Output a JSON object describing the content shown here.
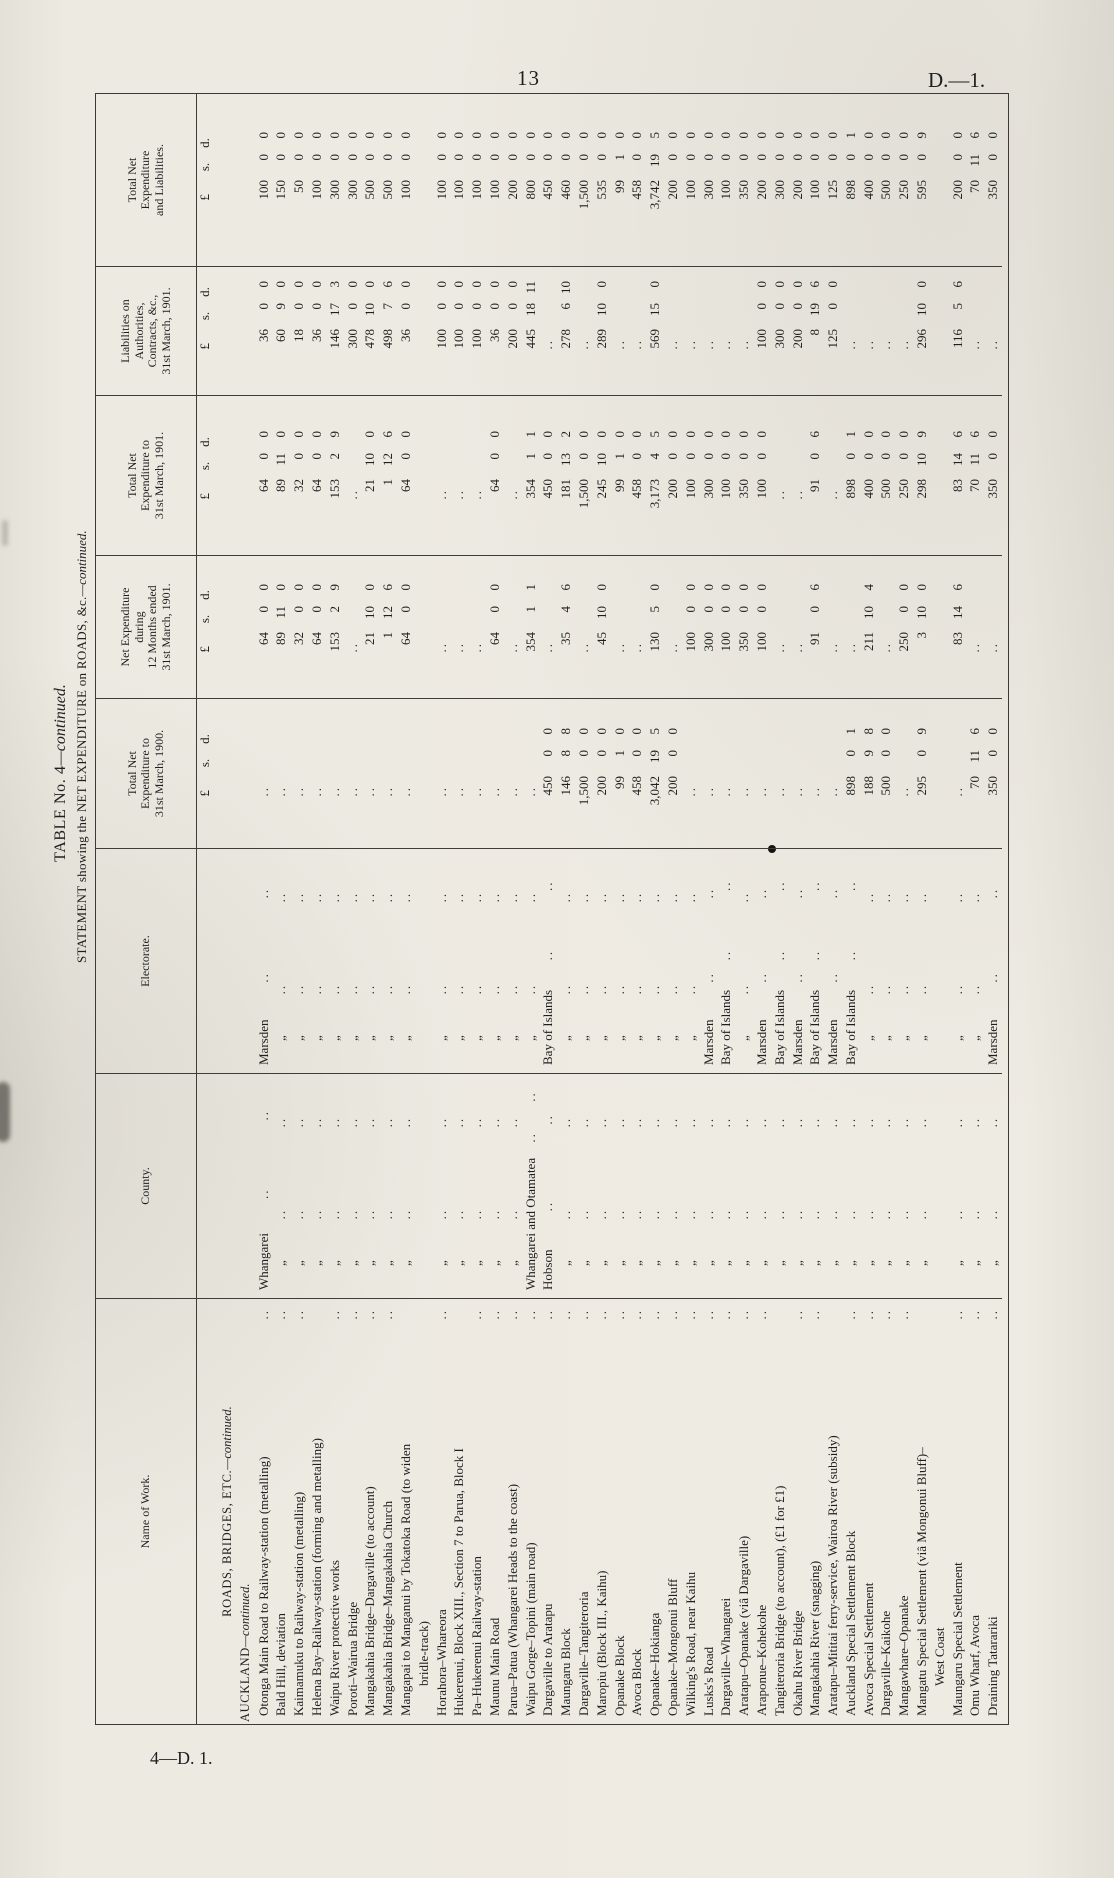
{
  "page": {
    "number": "13",
    "doc_ref": "D.—1.",
    "footer_ref": "4—D. 1."
  },
  "title": {
    "line1_main": "TABLE No. 4",
    "line1_cont": "—continued.",
    "line2_seg1": "STATEMENT",
    "line2_seg2": " showing the ",
    "line2_seg3": "NET EXPENDITURE",
    "line2_seg4": " on ",
    "line2_seg5": "ROADS, &c.",
    "line2_cont": "—continued."
  },
  "table": {
    "headers": {
      "name_of_work": "Name of Work.",
      "county": "County.",
      "electorate": "Electorate.",
      "exp_to_1900": "Total Net\nExpenditure to\n31st March, 1900.",
      "exp_year": "Net Expenditure\nduring\n12 Months ended\n31st March, 1901.",
      "exp_to_1901": "Total Net\nExpenditure to\n31st March, 1901.",
      "liabilities": "Liabilities on\nAuthorities,\nContracts, &c.,\n31st March, 1901.",
      "total": "Total Net\nExpenditure\nand Liabilities."
    },
    "currency": {
      "pound": "£",
      "shilling": "s.",
      "pence": "d."
    },
    "section_heading": {
      "main": "ROADS, BRIDGES, ETC.",
      "cont": "—continued."
    },
    "subsection_heading": {
      "main": "AUCKLAND",
      "cont": "—continued."
    },
    "ditto_mark": "„",
    "blank_mark": "..",
    "rows": [
      {
        "name": "Otonga Main Road to Railway-station (metalling)",
        "dots": true,
        "county": "Whangarei",
        "electorate": "Marsden",
        "to1900": "",
        "year1901": "64 0 0",
        "to1901": "64 0 0",
        "liab": "36 0 0",
        "total": "100 0 0"
      },
      {
        "name": "Bald Hill, deviation",
        "dots": true,
        "county": "„",
        "electorate": "„",
        "to1900": "",
        "year1901": "89 11 0",
        "to1901": "89 11 0",
        "liab": "60 9 0",
        "total": "150 0 0"
      },
      {
        "name": "Kaimamuku to Railway-station (metalling)",
        "dots": true,
        "county": "„",
        "electorate": "„",
        "to1900": "",
        "year1901": "32 0 0",
        "to1901": "32 0 0",
        "liab": "18 0 0",
        "total": "50 0 0"
      },
      {
        "name": "Helena Bay–Railway-station (forming and metalling)",
        "dots": false,
        "county": "„",
        "electorate": "„",
        "to1900": "",
        "year1901": "64 0 0",
        "to1901": "64 0 0",
        "liab": "36 0 0",
        "total": "100 0 0"
      },
      {
        "name": "Waipu River protective works",
        "dots": true,
        "county": "„",
        "electorate": "„",
        "to1900": "",
        "year1901": "153 2 9",
        "to1901": "153 2 9",
        "liab": "146 17 3",
        "total": "300 0 0"
      },
      {
        "name": "Poroti–Wairua Bridge",
        "dots": true,
        "county": "„",
        "electorate": "„",
        "to1900": "",
        "year1901": "",
        "to1901": "",
        "liab": "300 0 0",
        "total": "300 0 0"
      },
      {
        "name": "Mangakahia Bridge–Dargaville (to account)",
        "dots": true,
        "county": "„",
        "electorate": "„",
        "to1900": "",
        "year1901": "21 10 0",
        "to1901": "21 10 0",
        "liab": "478 10 0",
        "total": "500 0 0"
      },
      {
        "name": "Mangakahia Bridge–Mangakahia Church",
        "dots": true,
        "county": "„",
        "electorate": "„",
        "to1900": "",
        "year1901": "1 12 6",
        "to1901": "1 12 6",
        "liab": "498 7 6",
        "total": "500 0 0"
      },
      {
        "name": "Mangapai to Manganui by Tokatoka Road (to widen",
        "name2": "bridle-track)",
        "dots": false,
        "county": "„",
        "electorate": "„",
        "to1900": "",
        "year1901": "64 0 0",
        "to1901": "64 0 0",
        "liab": "36 0 0",
        "total": "100 0 0"
      },
      {
        "name": "Horahora–Whareora",
        "dots": true,
        "county": "„",
        "electorate": "„",
        "to1900": "",
        "year1901": "",
        "to1901": "",
        "liab": "100 0 0",
        "total": "100 0 0"
      },
      {
        "name": "Hukerenui, Block XIII., Section 7 to Parua, Block I",
        "dots": false,
        "county": "„",
        "electorate": "„",
        "to1900": "",
        "year1901": "",
        "to1901": "",
        "liab": "100 0 0",
        "total": "100 0 0"
      },
      {
        "name": "Pa–Hukerenui Railway-station",
        "dots": true,
        "county": "„",
        "electorate": "„",
        "to1900": "",
        "year1901": "",
        "to1901": "",
        "liab": "100 0 0",
        "total": "100 0 0"
      },
      {
        "name": "Maunu Main Road",
        "dots": true,
        "county": "„",
        "electorate": "„",
        "to1900": "",
        "year1901": "64 0 0",
        "to1901": "64 0 0",
        "liab": "36 0 0",
        "total": "100 0 0"
      },
      {
        "name": "Parua–Patua (Whangarei Heads to the coast)",
        "dots": true,
        "county": "„",
        "electorate": "„",
        "to1900": "",
        "year1901": "",
        "to1901": "",
        "liab": "200 0 0",
        "total": "200 0 0"
      },
      {
        "name": "Waipu Gorge–Topini (main road)",
        "dots": true,
        "county": "Whangarei and Otamatea",
        "electorate": "„",
        "to1900": "",
        "year1901": "354 1 1",
        "to1901": "354 1 1",
        "liab": "445 18 11",
        "total": "800 0 0"
      },
      {
        "name": "Dargaville to Aratapu",
        "dots": true,
        "county": "Hobson",
        "electorate": "Bay of Islands",
        "to1900": "450 0 0",
        "year1901": "",
        "to1901": "450 0 0",
        "liab": "",
        "total": "450 0 0"
      },
      {
        "name": "Maungaru Block",
        "dots": true,
        "county": "„",
        "electorate": "„",
        "to1900": "146 8 8",
        "year1901": "35 4 6",
        "to1901": "181 13 2",
        "liab": "278 6 10",
        "total": "460 0 0"
      },
      {
        "name": "Dargaville–Tangiteroria",
        "dots": true,
        "county": "„",
        "electorate": "„",
        "to1900": "1,500 0 0",
        "year1901": "",
        "to1901": "1,500 0 0",
        "liab": "",
        "total": "1,500 0 0"
      },
      {
        "name": "Maropiu (Block III., Kaihu)",
        "dots": true,
        "county": "„",
        "electorate": "„",
        "to1900": "200 0 0",
        "year1901": "45 10 0",
        "to1901": "245 10 0",
        "liab": "289 10 0",
        "total": "535 0 0"
      },
      {
        "name": "Opanake Block",
        "dots": true,
        "county": "„",
        "electorate": "„",
        "to1900": "99 1 0",
        "year1901": "",
        "to1901": "99 1 0",
        "liab": "",
        "total": "99 1 0"
      },
      {
        "name": "Avoca Block",
        "dots": true,
        "county": "„",
        "electorate": "„",
        "to1900": "458 0 0",
        "year1901": "",
        "to1901": "458 0 0",
        "liab": "",
        "total": "458 0 0"
      },
      {
        "name": "Opanake–Hokianga",
        "dots": true,
        "county": "„",
        "electorate": "„",
        "to1900": "3,042 19 5",
        "year1901": "130 5 0",
        "to1901": "3,173 4 5",
        "liab": "569 15 0",
        "total": "3,742 19 5"
      },
      {
        "name": "Opanake–Mongonui Bluff",
        "dots": true,
        "county": "„",
        "electorate": "„",
        "to1900": "200 0 0",
        "year1901": "",
        "to1901": "200 0 0",
        "liab": "",
        "total": "200 0 0"
      },
      {
        "name": "Wilking's Road, near Kaihu",
        "dots": true,
        "county": "„",
        "electorate": "„",
        "to1900": "",
        "year1901": "100 0 0",
        "to1901": "100 0 0",
        "liab": "",
        "total": "100 0 0"
      },
      {
        "name": "Lusks's Road",
        "dots": true,
        "county": "„",
        "electorate": "Marsden",
        "to1900": "",
        "year1901": "300 0 0",
        "to1901": "300 0 0",
        "liab": "",
        "total": "300 0 0"
      },
      {
        "name": "Dargaville–Whangarei",
        "dots": true,
        "county": "„",
        "electorate": "Bay of Islands",
        "to1900": "",
        "year1901": "100 0 0",
        "to1901": "100 0 0",
        "liab": "",
        "total": "100 0 0"
      },
      {
        "name": "Aratapu–Opanake (viâ Dargaville)",
        "dots": true,
        "county": "„",
        "electorate": "„",
        "to1900": "",
        "year1901": "350 0 0",
        "to1901": "350 0 0",
        "liab": "",
        "total": "350 0 0"
      },
      {
        "name": "Araponue–Kohekohe",
        "dots": true,
        "county": "„",
        "electorate": "Marsden",
        "to1900": "",
        "year1901": "100 0 0",
        "to1901": "100 0 0",
        "liab": "100 0 0",
        "total": "200 0 0"
      },
      {
        "name": "Tangiteroria Bridge (to account), (£1 for £1)",
        "dots": false,
        "county": "„",
        "electorate": "Bay of Islands",
        "to1900": "",
        "year1901": "",
        "to1901": "",
        "liab": "300 0 0",
        "total": "300 0 0"
      },
      {
        "name": "Okahu River Bridge",
        "dots": true,
        "county": "„",
        "electorate": "Marsden",
        "to1900": "",
        "year1901": "",
        "to1901": "",
        "liab": "200 0 0",
        "total": "200 0 0"
      },
      {
        "name": "Mangakahia River (snagging)",
        "dots": true,
        "county": "„",
        "electorate": "Bay of Islands",
        "to1900": "",
        "year1901": "91 0 6",
        "to1901": "91 0 6",
        "liab": "8 19 6",
        "total": "100 0 0"
      },
      {
        "name": "Aratapu–Mititai ferry-service, Wairoa River (subsidy)",
        "dots": false,
        "county": "„",
        "electorate": "Marsden",
        "to1900": "",
        "year1901": "",
        "to1901": "",
        "liab": "125 0 0",
        "total": "125 0 0"
      },
      {
        "name": "Auckland Special Settlement Block",
        "dots": true,
        "county": "„",
        "electorate": "Bay of Islands",
        "to1900": "898 0 1",
        "year1901": "",
        "to1901": "898 0 1",
        "liab": "",
        "total": "898 0 1"
      },
      {
        "name": "Avoca Special Settlement",
        "dots": true,
        "county": "„",
        "electorate": "„",
        "to1900": "188 9 8",
        "year1901": "211 10 4",
        "to1901": "400 0 0",
        "liab": "",
        "total": "400 0 0"
      },
      {
        "name": "Dargaville–Kaikohe",
        "dots": true,
        "county": "„",
        "electorate": "„",
        "to1900": "500 0 0",
        "year1901": "",
        "to1901": "500 0 0",
        "liab": "",
        "total": "500 0 0"
      },
      {
        "name": "Mangawhare–Opanake",
        "dots": true,
        "county": "„",
        "electorate": "„",
        "to1900": "",
        "year1901": "250 0 0",
        "to1901": "250 0 0",
        "liab": "",
        "total": "250 0 0"
      },
      {
        "name": "Mangatu Special Settlement (viâ Mongonui Bluff)–",
        "name2": "West Coast",
        "dots": false,
        "county": "„",
        "electorate": "„",
        "to1900": "295 0 9",
        "year1901": "3 10 0",
        "to1901": "298 10 9",
        "liab": "296 10 0",
        "total": "595 0 9"
      },
      {
        "name": "Maungaru Special Settlement",
        "dots": true,
        "county": "„",
        "electorate": "„",
        "to1900": "",
        "year1901": "83 14 6",
        "to1901": "83 14 6",
        "liab": "116 5 6",
        "total": "200 0 0"
      },
      {
        "name": "Omu Wharf, Avoca",
        "dots": true,
        "county": "„",
        "electorate": "„",
        "to1900": "70 11 6",
        "year1901": "",
        "to1901": "70 11 6",
        "liab": "",
        "total": "70 11 6"
      },
      {
        "name": "Draining Tatarariki",
        "dots": true,
        "county": "„",
        "electorate": "Marsden",
        "to1900": "350 0 0",
        "year1901": "",
        "to1901": "350 0 0",
        "liab": "",
        "total": "350 0 0"
      }
    ]
  }
}
